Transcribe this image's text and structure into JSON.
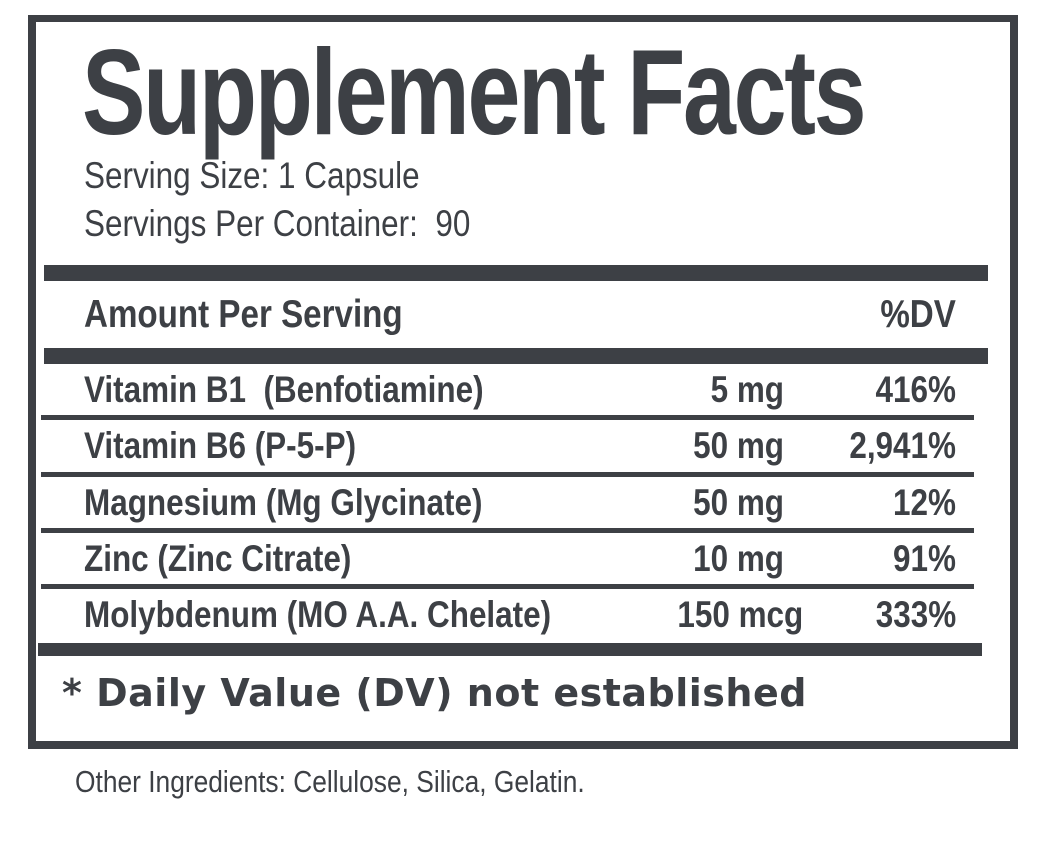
{
  "panel": {
    "title": "Supplement Facts",
    "serving_size": "Serving Size: 1 Capsule",
    "servings_per_container": "Servings Per Container:  90",
    "header": {
      "amount": "Amount Per Serving",
      "dv": "%DV"
    },
    "rows": [
      {
        "name": "Vitamin B1  (Benfotiamine)",
        "amount": "5 mg",
        "dv": "416%"
      },
      {
        "name": "Vitamin B6 (P-5-P)",
        "amount": "50 mg",
        "dv": "2,941%"
      },
      {
        "name": "Magnesium (Mg Glycinate)",
        "amount": "50 mg",
        "dv": "12%"
      },
      {
        "name": "Zinc (Zinc Citrate)",
        "amount": "10 mg",
        "dv": "91%"
      },
      {
        "name": "Molybdenum (MO A.A. Chelate)",
        "amount": "150 mcg",
        "dv": "333%"
      }
    ],
    "footnote": "* Daily Value (DV) not established",
    "other_ingredients": "Other Ingredients: Cellulose, Silica, Gelatin.",
    "colors": {
      "ink": "#3d4045",
      "background": "#ffffff"
    }
  }
}
